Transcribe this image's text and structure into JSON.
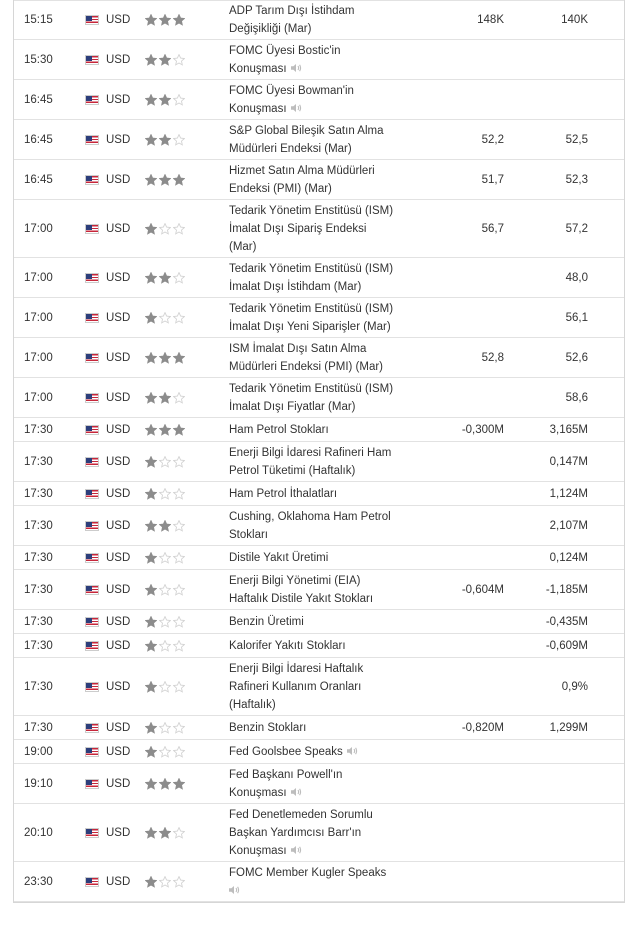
{
  "colors": {
    "star_on": "#8c8c8c",
    "star_off": "#d3d3d3"
  },
  "events": [
    {
      "time": "15:15",
      "currency": "USD",
      "importance": 3,
      "lines": [
        "ADP Tarım Dışı İstihdam",
        "Değişikliği (Mar)"
      ],
      "speech": false,
      "forecast": "148K",
      "previous": "140K"
    },
    {
      "time": "15:30",
      "currency": "USD",
      "importance": 2,
      "lines": [
        "FOMC Üyesi Bostic'in",
        "Konuşması"
      ],
      "speech": true,
      "forecast": "",
      "previous": ""
    },
    {
      "time": "16:45",
      "currency": "USD",
      "importance": 2,
      "lines": [
        "FOMC Üyesi Bowman'in",
        "Konuşması"
      ],
      "speech": true,
      "forecast": "",
      "previous": ""
    },
    {
      "time": "16:45",
      "currency": "USD",
      "importance": 2,
      "lines": [
        "S&P Global Bileşik Satın Alma",
        "Müdürleri Endeksi (Mar)"
      ],
      "speech": false,
      "forecast": "52,2",
      "previous": "52,5"
    },
    {
      "time": "16:45",
      "currency": "USD",
      "importance": 3,
      "lines": [
        "Hizmet Satın Alma Müdürleri",
        "Endeksi (PMI) (Mar)"
      ],
      "speech": false,
      "forecast": "51,7",
      "previous": "52,3"
    },
    {
      "time": "17:00",
      "currency": "USD",
      "importance": 1,
      "lines": [
        "Tedarik Yönetim Enstitüsü (ISM)",
        "İmalat Dışı Sipariş Endeksi",
        "(Mar)"
      ],
      "speech": false,
      "forecast": "56,7",
      "previous": "57,2"
    },
    {
      "time": "17:00",
      "currency": "USD",
      "importance": 2,
      "lines": [
        "Tedarik Yönetim Enstitüsü (ISM)",
        "İmalat Dışı İstihdam (Mar)"
      ],
      "speech": false,
      "forecast": "",
      "previous": "48,0"
    },
    {
      "time": "17:00",
      "currency": "USD",
      "importance": 1,
      "lines": [
        "Tedarik Yönetim Enstitüsü (ISM)",
        "İmalat Dışı Yeni Siparişler (Mar)"
      ],
      "speech": false,
      "forecast": "",
      "previous": "56,1"
    },
    {
      "time": "17:00",
      "currency": "USD",
      "importance": 3,
      "lines": [
        "ISM İmalat Dışı Satın Alma",
        "Müdürleri Endeksi (PMI) (Mar)"
      ],
      "speech": false,
      "forecast": "52,8",
      "previous": "52,6"
    },
    {
      "time": "17:00",
      "currency": "USD",
      "importance": 2,
      "lines": [
        "Tedarik Yönetim Enstitüsü (ISM)",
        "İmalat Dışı Fiyatlar (Mar)"
      ],
      "speech": false,
      "forecast": "",
      "previous": "58,6"
    },
    {
      "time": "17:30",
      "currency": "USD",
      "importance": 3,
      "lines": [
        "Ham Petrol Stokları"
      ],
      "speech": false,
      "forecast": "-0,300M",
      "previous": "3,165M"
    },
    {
      "time": "17:30",
      "currency": "USD",
      "importance": 1,
      "lines": [
        "Enerji Bilgi İdaresi Rafineri Ham",
        "Petrol Tüketimi (Haftalık)"
      ],
      "speech": false,
      "forecast": "",
      "previous": "0,147M"
    },
    {
      "time": "17:30",
      "currency": "USD",
      "importance": 1,
      "lines": [
        "Ham Petrol İthalatları"
      ],
      "speech": false,
      "forecast": "",
      "previous": "1,124M"
    },
    {
      "time": "17:30",
      "currency": "USD",
      "importance": 2,
      "lines": [
        "Cushing, Oklahoma Ham Petrol",
        "Stokları"
      ],
      "speech": false,
      "forecast": "",
      "previous": "2,107M"
    },
    {
      "time": "17:30",
      "currency": "USD",
      "importance": 1,
      "lines": [
        "Distile Yakıt Üretimi"
      ],
      "speech": false,
      "forecast": "",
      "previous": "0,124M"
    },
    {
      "time": "17:30",
      "currency": "USD",
      "importance": 1,
      "lines": [
        "Enerji Bilgi Yönetimi (EIA)",
        "Haftalık Distile Yakıt Stokları"
      ],
      "speech": false,
      "forecast": "-0,604M",
      "previous": "-1,185M"
    },
    {
      "time": "17:30",
      "currency": "USD",
      "importance": 1,
      "lines": [
        "Benzin Üretimi"
      ],
      "speech": false,
      "forecast": "",
      "previous": "-0,435M"
    },
    {
      "time": "17:30",
      "currency": "USD",
      "importance": 1,
      "lines": [
        "Kalorifer Yakıtı Stokları"
      ],
      "speech": false,
      "forecast": "",
      "previous": "-0,609M"
    },
    {
      "time": "17:30",
      "currency": "USD",
      "importance": 1,
      "lines": [
        "Enerji Bilgi İdaresi Haftalık",
        "Rafineri Kullanım Oranları",
        "(Haftalık)"
      ],
      "speech": false,
      "forecast": "",
      "previous": "0,9%"
    },
    {
      "time": "17:30",
      "currency": "USD",
      "importance": 1,
      "lines": [
        "Benzin Stokları"
      ],
      "speech": false,
      "forecast": "-0,820M",
      "previous": "1,299M"
    },
    {
      "time": "19:00",
      "currency": "USD",
      "importance": 1,
      "lines": [
        "Fed Goolsbee Speaks"
      ],
      "speech": true,
      "forecast": "",
      "previous": ""
    },
    {
      "time": "19:10",
      "currency": "USD",
      "importance": 3,
      "lines": [
        "Fed Başkanı Powell'ın",
        "Konuşması"
      ],
      "speech": true,
      "forecast": "",
      "previous": ""
    },
    {
      "time": "20:10",
      "currency": "USD",
      "importance": 2,
      "lines": [
        "Fed Denetlemeden Sorumlu",
        "Başkan Yardımcısı Barr'ın",
        "Konuşması"
      ],
      "speech": true,
      "forecast": "",
      "previous": ""
    },
    {
      "time": "23:30",
      "currency": "USD",
      "importance": 1,
      "lines": [
        "FOMC Member Kugler Speaks",
        ""
      ],
      "speech": true,
      "forecast": "",
      "previous": ""
    }
  ]
}
